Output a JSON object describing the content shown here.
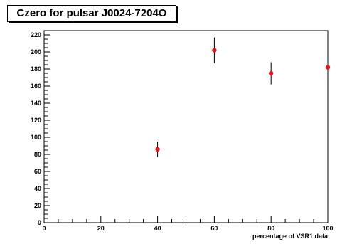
{
  "chart_data": {
    "type": "scatter",
    "title": "Czero for pulsar J0024-7204O",
    "xlabel": "percentage of VSR1 data",
    "ylabel": "",
    "xlim": [
      0,
      100
    ],
    "ylim": [
      0,
      225
    ],
    "x_ticks": [
      0,
      20,
      40,
      60,
      80,
      100
    ],
    "y_ticks": [
      0,
      20,
      40,
      60,
      80,
      100,
      120,
      140,
      160,
      180,
      200,
      220
    ],
    "grid": false,
    "marker_color": "#e8141e",
    "series": [
      {
        "x": [
          40,
          60,
          80,
          100
        ],
        "y": [
          86,
          202,
          175,
          182
        ],
        "yerr": [
          9,
          15,
          13,
          14
        ]
      }
    ]
  }
}
